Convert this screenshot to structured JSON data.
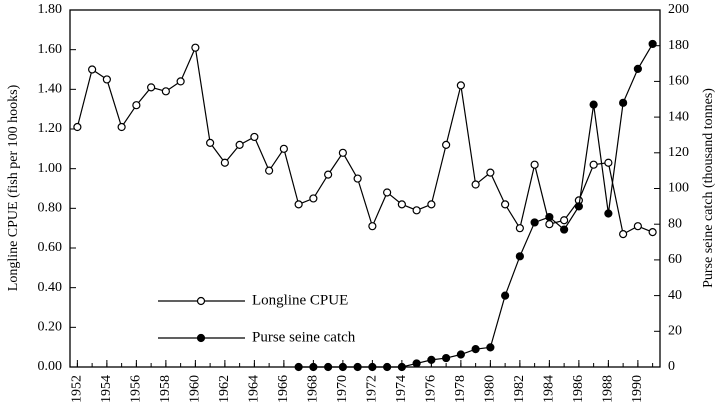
{
  "chart_data": {
    "type": "line",
    "y_label": "Longline CPUE (fish per 100 hooks)",
    "y2_label": "Purse seine catch (thousand tonnes)",
    "x": [
      1952,
      1953,
      1954,
      1955,
      1956,
      1957,
      1958,
      1959,
      1960,
      1961,
      1962,
      1963,
      1964,
      1965,
      1966,
      1967,
      1968,
      1969,
      1970,
      1971,
      1972,
      1973,
      1974,
      1975,
      1976,
      1977,
      1978,
      1979,
      1980,
      1981,
      1982,
      1983,
      1984,
      1985,
      1986,
      1987,
      1988,
      1989,
      1990,
      1991
    ],
    "series": [
      {
        "name": "Longline CPUE",
        "color": "#000000",
        "marker": "open",
        "values": [
          1.21,
          1.5,
          1.45,
          1.21,
          1.32,
          1.41,
          1.39,
          1.44,
          1.61,
          1.13,
          1.03,
          1.12,
          1.16,
          0.99,
          1.1,
          0.82,
          0.85,
          0.97,
          1.08,
          0.95,
          0.71,
          0.88,
          0.82,
          0.79,
          0.82,
          1.12,
          1.42,
          0.92,
          0.98,
          0.82,
          0.7,
          1.02,
          0.72,
          0.74,
          0.84,
          1.02,
          1.03,
          0.67,
          0.71,
          0.68
        ]
      },
      {
        "name": "Purse seine catch",
        "color": "#000000",
        "marker": "filled",
        "axis": "y2",
        "values": [
          null,
          null,
          null,
          null,
          null,
          null,
          null,
          null,
          null,
          null,
          null,
          null,
          null,
          null,
          null,
          0,
          0,
          0,
          0,
          0,
          0,
          0,
          0,
          2,
          4,
          5,
          7,
          10,
          11,
          40,
          62,
          81,
          84,
          77,
          90,
          147,
          86,
          148,
          167,
          181
        ]
      }
    ],
    "xlim": [
      1951.5,
      1991.5
    ],
    "xticks": [
      1952,
      1954,
      1956,
      1958,
      1960,
      1962,
      1964,
      1966,
      1968,
      1970,
      1972,
      1974,
      1976,
      1978,
      1980,
      1982,
      1984,
      1986,
      1988,
      1990
    ],
    "ylim": [
      0,
      1.8
    ],
    "yticks": [
      {
        "value": 0,
        "label": "0.00"
      },
      {
        "value": 0.2,
        "label": "0.20"
      },
      {
        "value": 0.4,
        "label": "0.40"
      },
      {
        "value": 0.6,
        "label": "0.60"
      },
      {
        "value": 0.8,
        "label": "0.80"
      },
      {
        "value": 1,
        "label": "1.00"
      },
      {
        "value": 1.2,
        "label": "1.20"
      },
      {
        "value": 1.4,
        "label": "1.40"
      },
      {
        "value": 1.6,
        "label": "1.60"
      },
      {
        "value": 1.8,
        "label": "1.80"
      }
    ],
    "y2lim": [
      0,
      200
    ],
    "y2ticks": [
      0,
      20,
      40,
      60,
      80,
      100,
      120,
      140,
      160,
      180,
      200
    ],
    "grid": false
  }
}
